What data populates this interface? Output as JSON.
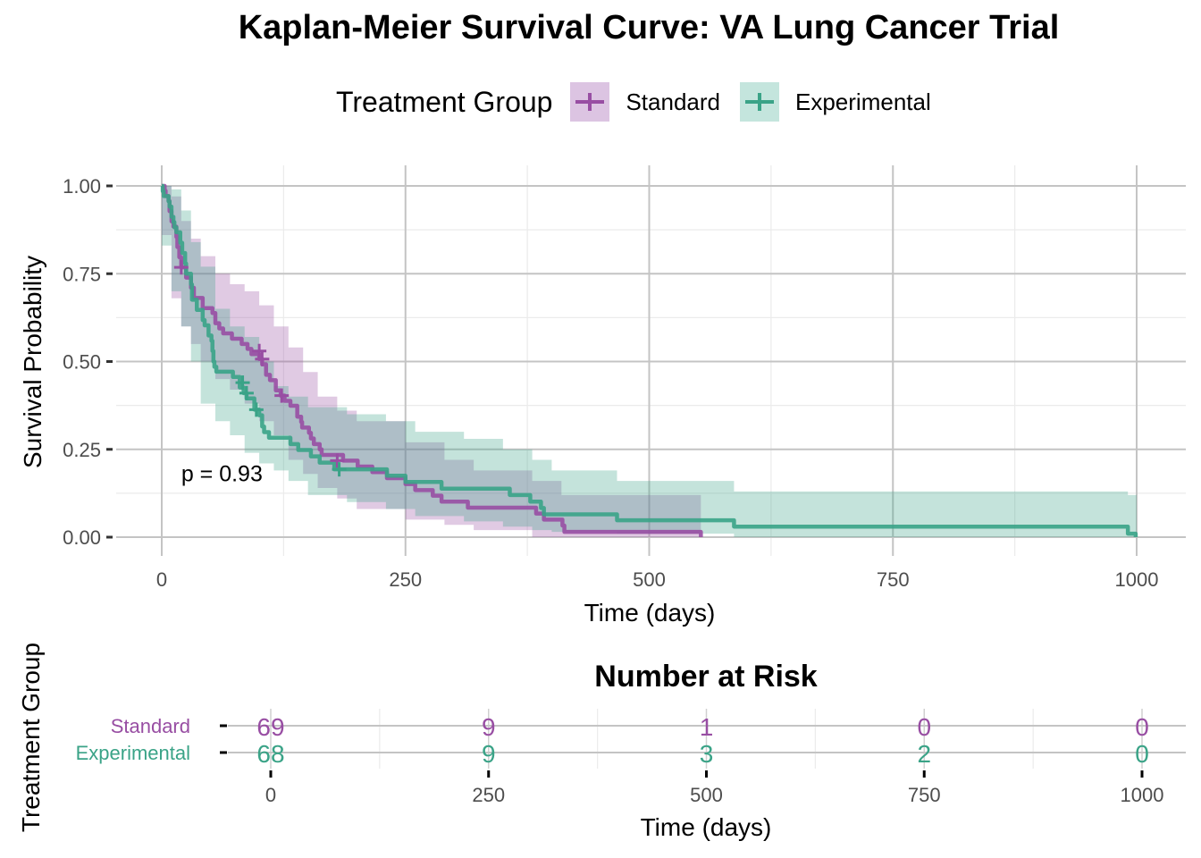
{
  "title": "Kaplan-Meier Survival Curve: VA Lung Cancer Trial",
  "legend": {
    "title": "Treatment Group",
    "items": [
      {
        "label": "Standard",
        "color": "#984EA3",
        "fill": "#DCC4E2"
      },
      {
        "label": "Experimental",
        "color": "#3AA387",
        "fill": "#C4E5DD"
      }
    ]
  },
  "chart_data": [
    {
      "type": "line",
      "subtype": "kaplan-meier-step",
      "title": "Kaplan-Meier Survival Curve: VA Lung Cancer Trial",
      "xlabel": "Time (days)",
      "ylabel": "Survival Probability",
      "xlim": [
        0,
        1000
      ],
      "ylim": [
        0,
        1
      ],
      "x_ticks": [
        0,
        250,
        500,
        750,
        1000
      ],
      "x_tick_labels": [
        "0",
        "250",
        "500",
        "750",
        "1000"
      ],
      "y_ticks": [
        0,
        0.25,
        0.5,
        0.75,
        1.0
      ],
      "y_tick_labels": [
        "0.00",
        "0.25",
        "0.50",
        "0.75",
        "1.00"
      ],
      "grid": true,
      "legend_position": "top",
      "annotation": {
        "text": "p = 0.93",
        "x": 20,
        "y": 0.19
      },
      "series": [
        {
          "name": "Standard",
          "color": "#984EA3",
          "points": [
            [
              0,
              1.0
            ],
            [
              3,
              0.986
            ],
            [
              4,
              0.971
            ],
            [
              7,
              0.957
            ],
            [
              8,
              0.928
            ],
            [
              10,
              0.899
            ],
            [
              12,
              0.884
            ],
            [
              15,
              0.855
            ],
            [
              16,
              0.826
            ],
            [
              18,
              0.797
            ],
            [
              20,
              0.768
            ],
            [
              25,
              0.739
            ],
            [
              30,
              0.71
            ],
            [
              33,
              0.681
            ],
            [
              42,
              0.652
            ],
            [
              52,
              0.638
            ],
            [
              55,
              0.609
            ],
            [
              59,
              0.594
            ],
            [
              63,
              0.58
            ],
            [
              72,
              0.565
            ],
            [
              82,
              0.55
            ],
            [
              88,
              0.536
            ],
            [
              92,
              0.521
            ],
            [
              100,
              0.507
            ],
            [
              103,
              0.492
            ],
            [
              107,
              0.462
            ],
            [
              111,
              0.447
            ],
            [
              117,
              0.418
            ],
            [
              122,
              0.403
            ],
            [
              126,
              0.388
            ],
            [
              132,
              0.374
            ],
            [
              139,
              0.343
            ],
            [
              143,
              0.328
            ],
            [
              144,
              0.312
            ],
            [
              151,
              0.297
            ],
            [
              153,
              0.281
            ],
            [
              156,
              0.265
            ],
            [
              162,
              0.25
            ],
            [
              164,
              0.234
            ],
            [
              186,
              0.218
            ],
            [
              201,
              0.201
            ],
            [
              216,
              0.185
            ],
            [
              231,
              0.168
            ],
            [
              250,
              0.151
            ],
            [
              260,
              0.134
            ],
            [
              278,
              0.118
            ],
            [
              287,
              0.101
            ],
            [
              314,
              0.084
            ],
            [
              384,
              0.067
            ],
            [
              392,
              0.05
            ],
            [
              411,
              0.033
            ],
            [
              413,
              0.015
            ],
            [
              553,
              0.0
            ]
          ],
          "censored": [
            [
              20,
              0.768
            ],
            [
              100,
              0.53
            ],
            [
              103,
              0.507
            ],
            [
              123,
              0.403
            ],
            [
              180,
              0.218
            ]
          ],
          "ci_upper": [
            [
              0,
              1.0
            ],
            [
              10,
              0.97
            ],
            [
              20,
              0.9
            ],
            [
              30,
              0.85
            ],
            [
              40,
              0.8
            ],
            [
              55,
              0.75
            ],
            [
              70,
              0.72
            ],
            [
              85,
              0.7
            ],
            [
              100,
              0.66
            ],
            [
              115,
              0.6
            ],
            [
              130,
              0.54
            ],
            [
              145,
              0.47
            ],
            [
              160,
              0.4
            ],
            [
              180,
              0.36
            ],
            [
              200,
              0.33
            ],
            [
              250,
              0.27
            ],
            [
              290,
              0.22
            ],
            [
              320,
              0.19
            ],
            [
              380,
              0.16
            ],
            [
              410,
              0.12
            ],
            [
              553,
              0.12
            ]
          ],
          "ci_lower": [
            [
              0,
              1.0
            ],
            [
              10,
              0.86
            ],
            [
              20,
              0.68
            ],
            [
              30,
              0.6
            ],
            [
              40,
              0.55
            ],
            [
              55,
              0.5
            ],
            [
              70,
              0.45
            ],
            [
              85,
              0.42
            ],
            [
              100,
              0.38
            ],
            [
              115,
              0.33
            ],
            [
              130,
              0.29
            ],
            [
              145,
              0.22
            ],
            [
              160,
              0.18
            ],
            [
              180,
              0.14
            ],
            [
              200,
              0.11
            ],
            [
              250,
              0.08
            ],
            [
              290,
              0.05
            ],
            [
              320,
              0.035
            ],
            [
              380,
              0.02
            ],
            [
              410,
              0.0
            ],
            [
              553,
              0.0
            ]
          ]
        },
        {
          "name": "Experimental",
          "color": "#3AA387",
          "points": [
            [
              0,
              1.0
            ],
            [
              1,
              0.985
            ],
            [
              2,
              0.971
            ],
            [
              7,
              0.956
            ],
            [
              8,
              0.941
            ],
            [
              10,
              0.912
            ],
            [
              12,
              0.897
            ],
            [
              13,
              0.882
            ],
            [
              15,
              0.868
            ],
            [
              19,
              0.838
            ],
            [
              21,
              0.809
            ],
            [
              24,
              0.779
            ],
            [
              25,
              0.75
            ],
            [
              30,
              0.72
            ],
            [
              31,
              0.676
            ],
            [
              36,
              0.647
            ],
            [
              42,
              0.618
            ],
            [
              44,
              0.603
            ],
            [
              48,
              0.574
            ],
            [
              51,
              0.559
            ],
            [
              52,
              0.53
            ],
            [
              53,
              0.5
            ],
            [
              54,
              0.485
            ],
            [
              56,
              0.471
            ],
            [
              73,
              0.456
            ],
            [
              80,
              0.426
            ],
            [
              84,
              0.41
            ],
            [
              87,
              0.395
            ],
            [
              95,
              0.363
            ],
            [
              100,
              0.347
            ],
            [
              103,
              0.315
            ],
            [
              105,
              0.299
            ],
            [
              110,
              0.283
            ],
            [
              132,
              0.265
            ],
            [
              140,
              0.248
            ],
            [
              153,
              0.23
            ],
            [
              162,
              0.212
            ],
            [
              177,
              0.193
            ],
            [
              231,
              0.175
            ],
            [
              250,
              0.157
            ],
            [
              287,
              0.138
            ],
            [
              357,
              0.12
            ],
            [
              378,
              0.101
            ],
            [
              389,
              0.083
            ],
            [
              392,
              0.065
            ],
            [
              467,
              0.048
            ],
            [
              587,
              0.03
            ],
            [
              991,
              0.01
            ],
            [
              999,
              0.0
            ]
          ],
          "censored": [
            [
              83,
              0.44
            ],
            [
              87,
              0.41
            ],
            [
              97,
              0.363
            ],
            [
              182,
              0.193
            ]
          ],
          "ci_upper": [
            [
              0,
              1.0
            ],
            [
              10,
              0.99
            ],
            [
              20,
              0.93
            ],
            [
              30,
              0.84
            ],
            [
              40,
              0.77
            ],
            [
              55,
              0.65
            ],
            [
              70,
              0.6
            ],
            [
              85,
              0.57
            ],
            [
              100,
              0.5
            ],
            [
              115,
              0.43
            ],
            [
              130,
              0.4
            ],
            [
              150,
              0.37
            ],
            [
              190,
              0.35
            ],
            [
              230,
              0.33
            ],
            [
              260,
              0.3
            ],
            [
              310,
              0.28
            ],
            [
              350,
              0.25
            ],
            [
              380,
              0.22
            ],
            [
              400,
              0.19
            ],
            [
              467,
              0.16
            ],
            [
              587,
              0.13
            ],
            [
              991,
              0.12
            ],
            [
              1000,
              0.12
            ]
          ],
          "ci_lower": [
            [
              0,
              1.0
            ],
            [
              10,
              0.83
            ],
            [
              20,
              0.7
            ],
            [
              30,
              0.6
            ],
            [
              40,
              0.5
            ],
            [
              55,
              0.38
            ],
            [
              70,
              0.33
            ],
            [
              85,
              0.29
            ],
            [
              100,
              0.24
            ],
            [
              115,
              0.21
            ],
            [
              130,
              0.19
            ],
            [
              150,
              0.16
            ],
            [
              190,
              0.12
            ],
            [
              230,
              0.1
            ],
            [
              260,
              0.08
            ],
            [
              310,
              0.06
            ],
            [
              350,
              0.045
            ],
            [
              380,
              0.03
            ],
            [
              400,
              0.02
            ],
            [
              467,
              0.015
            ],
            [
              587,
              0.01
            ],
            [
              991,
              0.0
            ],
            [
              1000,
              0.0
            ]
          ]
        }
      ]
    },
    {
      "type": "table",
      "title": "Number at Risk",
      "xlabel": "Time (days)",
      "ylabel": "Treatment Group",
      "xlim": [
        0,
        1000
      ],
      "x_ticks": [
        0,
        250,
        500,
        750,
        1000
      ],
      "x_tick_labels": [
        "0",
        "250",
        "500",
        "750",
        "1000"
      ],
      "rows": [
        {
          "name": "Standard",
          "color": "#984EA3",
          "values": [
            69,
            9,
            1,
            0,
            0
          ]
        },
        {
          "name": "Experimental",
          "color": "#3AA387",
          "values": [
            68,
            9,
            3,
            2,
            0
          ]
        }
      ]
    }
  ]
}
